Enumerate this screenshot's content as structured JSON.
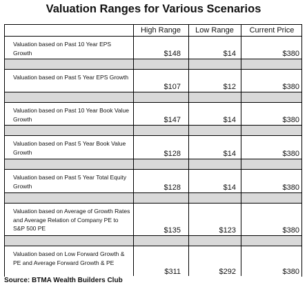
{
  "title": "Valuation Ranges for Various Scenarios",
  "columns": [
    "High Range",
    "Low Range",
    "Current Price"
  ],
  "rows": [
    {
      "label": "Valuation based on Past 10 Year EPS Growth",
      "high": "$148",
      "low": "$14",
      "current": "$380"
    },
    {
      "label": "Valuation based on Past 5 Year EPS Growth",
      "high": "$107",
      "low": "$12",
      "current": "$380"
    },
    {
      "label": "Valuation based on Past 10 Year Book Value Growth",
      "high": "$147",
      "low": "$14",
      "current": "$380"
    },
    {
      "label": "Valuation based on Past 5 Year Book Value Growth",
      "high": "$128",
      "low": "$14",
      "current": "$380"
    },
    {
      "label": "Valuation based on Past 5 Year Total Equity Growth",
      "high": "$128",
      "low": "$14",
      "current": "$380"
    },
    {
      "label": "Valuation based on Average of Growth Rates and Average Relation of Company PE to S&P 500 PE",
      "high": "$135",
      "low": "$123",
      "current": "$380"
    },
    {
      "label": "Valuation based on Low Forward Growth & PE and Average Forward Growth & PE",
      "high": "$311",
      "low": "$292",
      "current": "$380"
    }
  ],
  "source": "Source: BTMA Wealth Builders Club"
}
